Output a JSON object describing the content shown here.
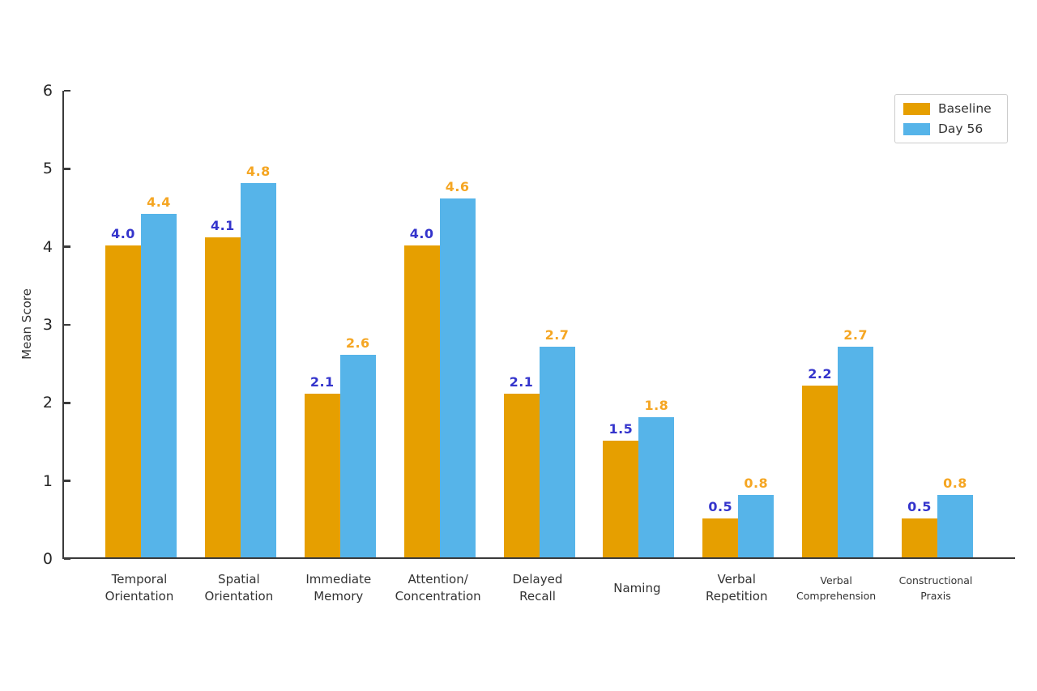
{
  "figure": {
    "background": "#ffffff"
  },
  "chart_data": {
    "type": "bar",
    "title": "",
    "xlabel": "",
    "ylabel": "Mean Score",
    "ylim": [
      0,
      6
    ],
    "yticks": [
      0,
      1,
      2,
      3,
      4,
      5,
      6
    ],
    "grid": false,
    "legend_position": "upper right",
    "value_label_decimals": 1,
    "axis_color": "#3a3a3a",
    "categories": [
      {
        "label": "Temporal\nOrientation",
        "small": false
      },
      {
        "label": "Spatial\nOrientation",
        "small": false
      },
      {
        "label": "Immediate\nMemory",
        "small": false
      },
      {
        "label": "Attention/\nConcentration",
        "small": false
      },
      {
        "label": "Delayed\nRecall",
        "small": false
      },
      {
        "label": "Naming",
        "small": false
      },
      {
        "label": "Verbal\nRepetition",
        "small": false
      },
      {
        "label": "Verbal\nComprehension",
        "small": true
      },
      {
        "label": "Constructional\nPraxis",
        "small": true
      }
    ],
    "series": [
      {
        "name": "Baseline",
        "color": "#E69F00",
        "value_label_color": "#3434CC",
        "values": [
          4.0,
          4.1,
          2.1,
          4.0,
          2.1,
          1.5,
          0.5,
          2.2,
          0.5
        ]
      },
      {
        "name": "Day 56",
        "color": "#56B4E9",
        "value_label_color": "#F5A623",
        "values": [
          4.4,
          4.8,
          2.6,
          4.6,
          2.7,
          1.8,
          0.8,
          2.7,
          0.8
        ]
      }
    ]
  }
}
